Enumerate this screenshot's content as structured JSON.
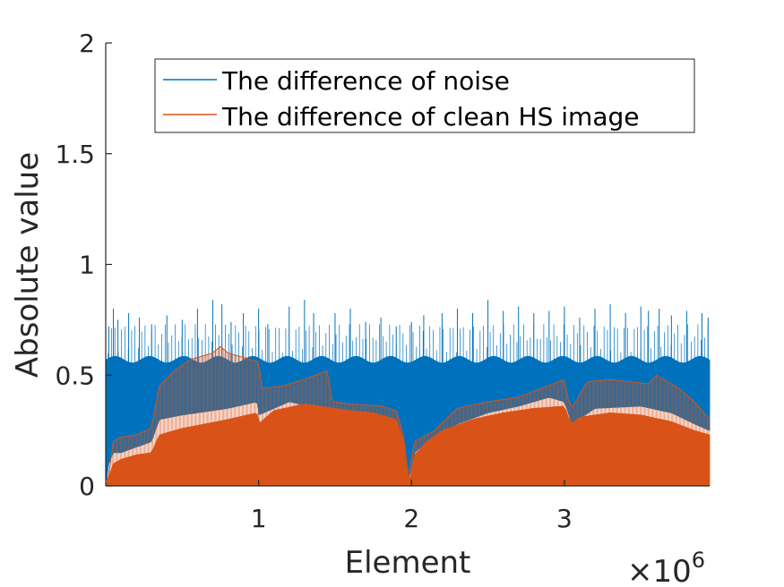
{
  "chart_data": {
    "type": "line",
    "title": "",
    "xlabel": "Element",
    "ylabel": "Absolute value",
    "x_exponent_label": "×10",
    "x_exponent_power": "6",
    "x_scale": 1000000,
    "xlim": [
      0,
      3.95
    ],
    "ylim": [
      0,
      2
    ],
    "xticks": [
      {
        "value": 1,
        "label": "1"
      },
      {
        "value": 2,
        "label": "2"
      },
      {
        "value": 3,
        "label": "3"
      }
    ],
    "yticks": [
      {
        "value": 0,
        "label": "0"
      },
      {
        "value": 0.5,
        "label": "0.5"
      },
      {
        "value": 1,
        "label": "1"
      },
      {
        "value": 1.5,
        "label": "1.5"
      },
      {
        "value": 2,
        "label": "2"
      }
    ],
    "grid": false,
    "legend_position": "top",
    "series": [
      {
        "name": "The difference of noise",
        "color": "#0072BD",
        "band_top": 0.57,
        "band_bottom_envelope": [
          [
            0.0,
            0.0
          ],
          [
            0.02,
            0.1
          ],
          [
            0.05,
            0.15
          ],
          [
            0.1,
            0.15
          ],
          [
            0.3,
            0.2
          ],
          [
            0.35,
            0.3
          ],
          [
            0.5,
            0.32
          ],
          [
            0.8,
            0.35
          ],
          [
            0.99,
            0.38
          ],
          [
            1.0,
            0.32
          ],
          [
            1.2,
            0.38
          ],
          [
            1.4,
            0.35
          ],
          [
            1.5,
            0.33
          ],
          [
            1.7,
            0.3
          ],
          [
            1.85,
            0.25
          ],
          [
            1.95,
            0.12
          ],
          [
            1.98,
            0.02
          ],
          [
            2.02,
            0.15
          ],
          [
            2.1,
            0.2
          ],
          [
            2.3,
            0.28
          ],
          [
            2.5,
            0.33
          ],
          [
            2.7,
            0.36
          ],
          [
            2.9,
            0.4
          ],
          [
            3.0,
            0.38
          ],
          [
            3.05,
            0.28
          ],
          [
            3.2,
            0.35
          ],
          [
            3.5,
            0.36
          ],
          [
            3.7,
            0.33
          ],
          [
            3.85,
            0.28
          ],
          [
            3.95,
            0.25
          ]
        ],
        "spikes": [
          [
            0.02,
            0.72
          ],
          [
            0.05,
            0.8
          ],
          [
            0.08,
            0.75
          ],
          [
            0.15,
            0.78
          ],
          [
            0.22,
            0.76
          ],
          [
            0.3,
            0.73
          ],
          [
            0.4,
            0.77
          ],
          [
            0.5,
            0.75
          ],
          [
            0.6,
            0.8
          ],
          [
            0.7,
            0.84
          ],
          [
            0.76,
            0.82
          ],
          [
            0.82,
            0.74
          ],
          [
            0.9,
            0.78
          ],
          [
            1.0,
            0.8
          ],
          [
            1.06,
            0.73
          ],
          [
            1.2,
            0.81
          ],
          [
            1.3,
            0.84
          ],
          [
            1.36,
            0.78
          ],
          [
            1.5,
            0.78
          ],
          [
            1.6,
            0.8
          ],
          [
            1.7,
            0.74
          ],
          [
            1.8,
            0.76
          ],
          [
            1.9,
            0.72
          ],
          [
            2.0,
            0.74
          ],
          [
            2.08,
            0.77
          ],
          [
            2.2,
            0.78
          ],
          [
            2.3,
            0.8
          ],
          [
            2.4,
            0.78
          ],
          [
            2.5,
            0.84
          ],
          [
            2.6,
            0.79
          ],
          [
            2.7,
            0.81
          ],
          [
            2.8,
            0.78
          ],
          [
            2.9,
            0.79
          ],
          [
            3.0,
            0.81
          ],
          [
            3.1,
            0.76
          ],
          [
            3.2,
            0.8
          ],
          [
            3.3,
            0.82
          ],
          [
            3.4,
            0.78
          ],
          [
            3.5,
            0.81
          ],
          [
            3.55,
            0.79
          ],
          [
            3.62,
            0.8
          ],
          [
            3.7,
            0.77
          ],
          [
            3.8,
            0.79
          ],
          [
            3.9,
            0.78
          ],
          [
            3.94,
            0.76
          ]
        ]
      },
      {
        "name": "The difference of clean HS image",
        "color": "#D95319",
        "lower_envelope": [
          [
            0.0,
            0.0
          ],
          [
            0.02,
            0.04
          ],
          [
            0.05,
            0.1
          ],
          [
            0.1,
            0.12
          ],
          [
            0.2,
            0.14
          ],
          [
            0.3,
            0.15
          ],
          [
            0.35,
            0.23
          ],
          [
            0.5,
            0.26
          ],
          [
            0.65,
            0.28
          ],
          [
            0.8,
            0.3
          ],
          [
            0.99,
            0.33
          ],
          [
            1.0,
            0.28
          ],
          [
            1.1,
            0.34
          ],
          [
            1.3,
            0.37
          ],
          [
            1.5,
            0.35
          ],
          [
            1.6,
            0.34
          ],
          [
            1.75,
            0.33
          ],
          [
            1.9,
            0.3
          ],
          [
            1.95,
            0.2
          ],
          [
            1.97,
            0.05
          ],
          [
            1.99,
            0.03
          ],
          [
            2.02,
            0.14
          ],
          [
            2.1,
            0.2
          ],
          [
            2.2,
            0.25
          ],
          [
            2.4,
            0.3
          ],
          [
            2.6,
            0.33
          ],
          [
            2.8,
            0.35
          ],
          [
            3.0,
            0.36
          ],
          [
            3.02,
            0.32
          ],
          [
            3.05,
            0.28
          ],
          [
            3.1,
            0.31
          ],
          [
            3.3,
            0.33
          ],
          [
            3.5,
            0.32
          ],
          [
            3.7,
            0.29
          ],
          [
            3.85,
            0.25
          ],
          [
            3.95,
            0.23
          ]
        ],
        "upper_envelope": [
          [
            0.0,
            0.0
          ],
          [
            0.02,
            0.05
          ],
          [
            0.05,
            0.2
          ],
          [
            0.1,
            0.22
          ],
          [
            0.2,
            0.23
          ],
          [
            0.3,
            0.26
          ],
          [
            0.35,
            0.45
          ],
          [
            0.45,
            0.52
          ],
          [
            0.55,
            0.57
          ],
          [
            0.7,
            0.6
          ],
          [
            0.75,
            0.63
          ],
          [
            0.8,
            0.6
          ],
          [
            0.9,
            0.58
          ],
          [
            1.0,
            0.56
          ],
          [
            1.02,
            0.44
          ],
          [
            1.15,
            0.45
          ],
          [
            1.3,
            0.48
          ],
          [
            1.45,
            0.52
          ],
          [
            1.48,
            0.38
          ],
          [
            1.6,
            0.37
          ],
          [
            1.8,
            0.36
          ],
          [
            1.9,
            0.34
          ],
          [
            1.95,
            0.22
          ],
          [
            1.98,
            0.04
          ],
          [
            2.02,
            0.2
          ],
          [
            2.15,
            0.25
          ],
          [
            2.3,
            0.35
          ],
          [
            2.5,
            0.38
          ],
          [
            2.7,
            0.4
          ],
          [
            2.85,
            0.44
          ],
          [
            3.0,
            0.48
          ],
          [
            3.02,
            0.4
          ],
          [
            3.05,
            0.35
          ],
          [
            3.15,
            0.47
          ],
          [
            3.3,
            0.48
          ],
          [
            3.55,
            0.46
          ],
          [
            3.6,
            0.5
          ],
          [
            3.75,
            0.44
          ],
          [
            3.85,
            0.38
          ],
          [
            3.95,
            0.3
          ]
        ]
      }
    ]
  }
}
